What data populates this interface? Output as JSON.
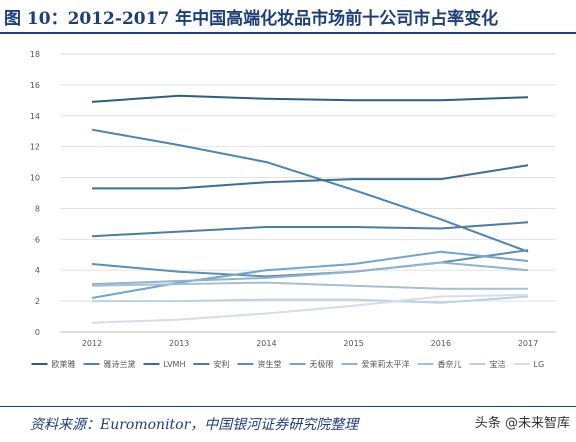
{
  "header": {
    "title": "图 10：2012-2017 年中国高端化妆品市场前十公司市占率变化"
  },
  "footer": {
    "source": "资料来源：Euromonitor，中国银河证券研究院整理",
    "watermark": "头条 @未来智库"
  },
  "chart_data": {
    "type": "line",
    "x": [
      "2012",
      "2013",
      "2014",
      "2015",
      "2016",
      "2017"
    ],
    "ylim": [
      0,
      18
    ],
    "yticks": [
      0,
      2,
      4,
      6,
      8,
      10,
      12,
      14,
      16,
      18
    ],
    "grid": true,
    "legend_position": "bottom",
    "series": [
      {
        "name": "欧莱雅",
        "color": "#2f5d7e",
        "values": [
          14.9,
          15.3,
          15.1,
          15.0,
          15.0,
          15.2
        ]
      },
      {
        "name": "雅诗兰黛",
        "color": "#4a86b0",
        "values": [
          13.1,
          12.1,
          11.0,
          9.2,
          7.3,
          5.2
        ]
      },
      {
        "name": "LVMH",
        "color": "#3a6f93",
        "values": [
          9.3,
          9.3,
          9.7,
          9.9,
          9.9,
          10.8
        ]
      },
      {
        "name": "安利",
        "color": "#4a7ea0",
        "values": [
          6.2,
          6.5,
          6.8,
          6.8,
          6.7,
          7.1
        ]
      },
      {
        "name": "资生堂",
        "color": "#5b8fb3",
        "values": [
          4.4,
          3.9,
          3.6,
          3.9,
          4.5,
          5.3
        ]
      },
      {
        "name": "无极限",
        "color": "#6fa6cf",
        "values": [
          2.2,
          3.2,
          4.0,
          4.4,
          5.2,
          4.6
        ]
      },
      {
        "name": "爱茉莉太平洋",
        "color": "#8fb3cc",
        "values": [
          3.1,
          3.3,
          3.5,
          3.9,
          4.5,
          4.0
        ]
      },
      {
        "name": "香奈儿",
        "color": "#a7bfd2",
        "values": [
          3.0,
          3.1,
          3.2,
          3.0,
          2.8,
          2.8
        ]
      },
      {
        "name": "宝洁",
        "color": "#bdd0e0",
        "values": [
          2.0,
          2.0,
          2.1,
          2.1,
          1.9,
          2.3
        ]
      },
      {
        "name": "LG",
        "color": "#d0dfec",
        "values": [
          0.6,
          0.8,
          1.2,
          1.7,
          2.3,
          2.4
        ]
      }
    ]
  }
}
